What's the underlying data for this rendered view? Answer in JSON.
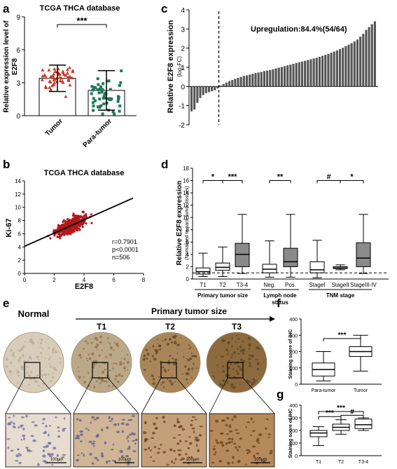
{
  "panels": {
    "a": {
      "letter": "a"
    },
    "b": {
      "letter": "b"
    },
    "c": {
      "letter": "c"
    },
    "d": {
      "letter": "d"
    },
    "e": {
      "letter": "e"
    },
    "f": {
      "letter": "f"
    },
    "g": {
      "letter": "g"
    }
  },
  "chart_data": [
    {
      "id": "a",
      "type": "scatter",
      "title": "TCGA THCA database",
      "ylabel_line1": "Relative expression level of",
      "ylabel_line2": "E2F8",
      "categories": [
        "Tumor",
        "Para-tumor"
      ],
      "means": [
        3.4,
        2.3
      ],
      "sd": [
        1.2,
        1.8
      ],
      "ylim": [
        0,
        9
      ],
      "yticks": [
        "0",
        "3",
        "6",
        "9"
      ],
      "significance": "***",
      "series_colors": [
        "#c0392b",
        "#1e7a5a"
      ]
    },
    {
      "id": "b",
      "type": "scatter",
      "title": "TCGA THCA database",
      "xlabel": "E2F8",
      "ylabel": "Ki-67",
      "xlim": [
        0,
        8
      ],
      "ylim": [
        0,
        14
      ],
      "xticks": [
        "0",
        "2",
        "4",
        "6",
        "8"
      ],
      "yticks": [
        "0",
        "2",
        "4",
        "6",
        "8",
        "10",
        "12",
        "14"
      ],
      "stats": [
        "r=0.7901",
        "p<0.0001",
        "n=506"
      ],
      "fit_line": {
        "slope": 1.0,
        "intercept": 4.1
      },
      "n_points": 506,
      "point_color": "#b0191c"
    },
    {
      "id": "c",
      "type": "bar",
      "ylabel_line1": "Relative E2F8 expression",
      "ylabel_line2": "(log₂FC)",
      "annotation": "Upregulation:84.4%(54/64)",
      "ylim": [
        -2,
        4
      ],
      "yticks": [
        "-2",
        "-1",
        "0",
        "1",
        "2",
        "3",
        "4"
      ],
      "values": [
        -1.3,
        -1.2,
        -0.85,
        -0.6,
        -0.45,
        -0.35,
        -0.3,
        -0.25,
        -0.2,
        -0.1,
        0.05,
        0.12,
        0.2,
        0.28,
        0.34,
        0.4,
        0.45,
        0.5,
        0.55,
        0.58,
        0.62,
        0.66,
        0.7,
        0.73,
        0.76,
        0.8,
        0.83,
        0.86,
        0.9,
        0.94,
        0.98,
        1.02,
        1.06,
        1.1,
        1.14,
        1.18,
        1.22,
        1.26,
        1.3,
        1.34,
        1.38,
        1.42,
        1.46,
        1.5,
        1.55,
        1.6,
        1.65,
        1.7,
        1.76,
        1.82,
        1.88,
        1.95,
        2.02,
        2.1,
        2.18,
        2.26,
        2.35,
        2.45,
        2.6,
        2.75,
        2.95,
        3.1,
        3.25,
        3.4
      ],
      "bar_color": "#555555"
    },
    {
      "id": "d",
      "type": "boxplot",
      "ylabel_line1": "Relative E2F8 expression",
      "ylabel_line2": "(Nomalized to para-tumor tissues)",
      "ylim": [
        0,
        18
      ],
      "yticks": [
        "0",
        "2",
        "4",
        "6",
        "8",
        "10",
        "12",
        "14",
        "16",
        "18"
      ],
      "boxes": [
        {
          "label": "T1",
          "min": 0.4,
          "q1": 0.8,
          "median": 1.2,
          "q3": 1.8,
          "max": 4.2,
          "fill": "#ffffff"
        },
        {
          "label": "T2",
          "min": 0.4,
          "q1": 1.4,
          "median": 1.9,
          "q3": 2.6,
          "max": 5.2,
          "fill": "#eeeeee"
        },
        {
          "label": "T3-4",
          "min": 0.9,
          "q1": 2.0,
          "median": 4.0,
          "q3": 5.8,
          "max": 10.5,
          "fill": "#8a8a8a"
        },
        {
          "label": "Neg.",
          "min": 0.3,
          "q1": 1.0,
          "median": 1.6,
          "q3": 2.4,
          "max": 6.2,
          "fill": "#ffffff"
        },
        {
          "label": "Pos.",
          "min": 0.3,
          "q1": 2.0,
          "median": 2.8,
          "q3": 5.0,
          "max": 10.5,
          "fill": "#8a8a8a"
        },
        {
          "label": "StageI",
          "min": 0.2,
          "q1": 1.0,
          "median": 1.5,
          "q3": 2.8,
          "max": 6.3,
          "fill": "#ffffff"
        },
        {
          "label": "StageII",
          "min": 1.5,
          "q1": 1.7,
          "median": 1.8,
          "q3": 2.0,
          "max": 2.3,
          "fill": "#eeeeee"
        },
        {
          "label": "StageIII-IV",
          "min": 0.9,
          "q1": 2.0,
          "median": 3.4,
          "q3": 5.9,
          "max": 10.5,
          "fill": "#8a8a8a"
        }
      ],
      "reference_line": 1,
      "brackets": [
        {
          "from": 0,
          "to": 1,
          "label": "*"
        },
        {
          "from": 1,
          "to": 2,
          "label": "***"
        },
        {
          "from": 3,
          "to": 4,
          "label": "**"
        },
        {
          "from": 5,
          "to": 6,
          "label": "#"
        },
        {
          "from": 6,
          "to": 7,
          "label": "*"
        }
      ],
      "groups": [
        {
          "label": "Primary tumor size",
          "from": 0,
          "to": 2
        },
        {
          "label": "Lymph node status",
          "from": 3,
          "to": 4
        },
        {
          "label": "TNM stage",
          "from": 5,
          "to": 7
        }
      ]
    },
    {
      "id": "f",
      "type": "boxplot",
      "ylabel": "Staining score of IHC",
      "ylim": [
        0,
        400
      ],
      "yticks": [
        "0",
        "100",
        "200",
        "300",
        "400"
      ],
      "boxes": [
        {
          "label": "Para-tumor",
          "min": 20,
          "q1": 50,
          "median": 90,
          "q3": 130,
          "max": 200
        },
        {
          "label": "Tumor",
          "min": 80,
          "q1": 170,
          "median": 200,
          "q3": 230,
          "max": 300
        }
      ],
      "brackets": [
        {
          "from": 0,
          "to": 1,
          "label": "***"
        }
      ]
    },
    {
      "id": "g",
      "type": "boxplot",
      "ylabel": "Staining score of IHC",
      "ylim": [
        0,
        400
      ],
      "yticks": [
        "0",
        "100",
        "200",
        "300",
        "400"
      ],
      "boxes": [
        {
          "label": "T1",
          "min": 80,
          "q1": 150,
          "median": 180,
          "q3": 200,
          "max": 230
        },
        {
          "label": "T2",
          "min": 170,
          "q1": 200,
          "median": 225,
          "q3": 250,
          "max": 285
        },
        {
          "label": "T3-4",
          "min": 200,
          "q1": 215,
          "median": 245,
          "q3": 290,
          "max": 300
        }
      ],
      "brackets": [
        {
          "from": 0,
          "to": 1,
          "label": "***"
        },
        {
          "from": 1,
          "to": 2,
          "label": "#"
        },
        {
          "from": 0,
          "to": 2,
          "label": "***"
        }
      ]
    }
  ],
  "ihc": {
    "header": "Primary tumor size",
    "columns": [
      "Normal",
      "T1",
      "T2",
      "T3"
    ],
    "scale_bar": "100μm",
    "tissue_colors": [
      "#d8cdbb",
      "#bba888",
      "#a9865a",
      "#8c6a3e"
    ]
  }
}
